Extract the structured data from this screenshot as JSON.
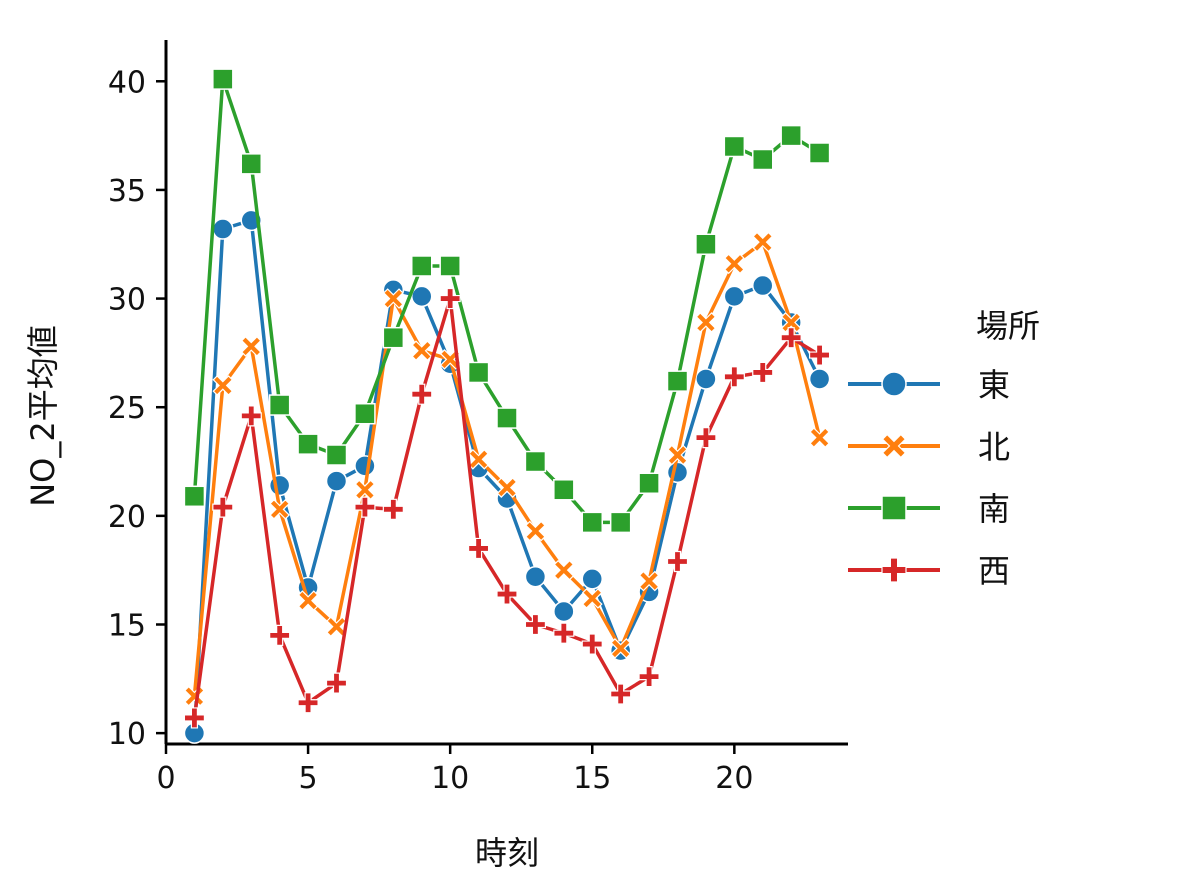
{
  "chart_data": {
    "type": "line",
    "title": "",
    "xlabel": "時刻",
    "ylabel": "NO_2平均値",
    "xlim": [
      0,
      24
    ],
    "ylim": [
      9.5,
      41.9
    ],
    "xticks": [
      0,
      5,
      10,
      15,
      20
    ],
    "yticks": [
      10,
      15,
      20,
      25,
      30,
      35,
      40
    ],
    "grid": false,
    "legend": {
      "title": "場所",
      "placement": "right"
    },
    "x": [
      1,
      2,
      3,
      4,
      5,
      6,
      7,
      8,
      9,
      10,
      11,
      12,
      13,
      14,
      15,
      16,
      17,
      18,
      19,
      20,
      21,
      22,
      23
    ],
    "series": [
      {
        "name": "東",
        "color": "#1f77b4",
        "marker": "circle",
        "values": [
          10.0,
          33.2,
          33.6,
          21.4,
          16.7,
          21.6,
          22.3,
          30.4,
          30.1,
          27.0,
          22.2,
          20.8,
          17.2,
          15.6,
          17.1,
          13.8,
          16.5,
          22.0,
          26.3,
          30.1,
          30.6,
          28.9,
          26.3
        ]
      },
      {
        "name": "北",
        "color": "#ff7f0e",
        "marker": "x",
        "values": [
          11.7,
          26.0,
          27.8,
          20.3,
          16.1,
          14.9,
          21.2,
          30.0,
          27.6,
          27.2,
          22.6,
          21.3,
          19.3,
          17.5,
          16.2,
          13.9,
          17.0,
          22.8,
          28.9,
          31.6,
          32.6,
          28.9,
          23.6
        ]
      },
      {
        "name": "南",
        "color": "#2ca02c",
        "marker": "square",
        "values": [
          20.9,
          40.1,
          36.2,
          25.1,
          23.3,
          22.8,
          24.7,
          28.2,
          31.5,
          31.5,
          26.6,
          24.5,
          22.5,
          21.2,
          19.7,
          19.7,
          21.5,
          26.2,
          32.5,
          37.0,
          36.4,
          37.5,
          36.7
        ]
      },
      {
        "name": "西",
        "color": "#d62728",
        "marker": "plus",
        "values": [
          10.7,
          20.4,
          24.6,
          14.5,
          11.4,
          12.3,
          20.4,
          20.3,
          25.6,
          30.0,
          18.5,
          16.4,
          15.0,
          14.6,
          14.1,
          11.8,
          12.6,
          17.9,
          23.6,
          26.4,
          26.6,
          28.2,
          27.4
        ]
      }
    ]
  }
}
